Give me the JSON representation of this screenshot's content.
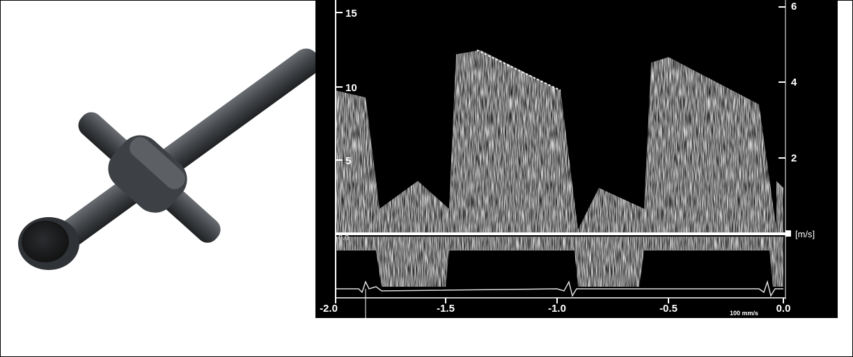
{
  "left_axis": {
    "labels": [
      "15",
      "10",
      "5"
    ]
  },
  "right_axis": {
    "labels": [
      "6",
      "4",
      "2",
      "[m/s]"
    ]
  },
  "x_axis": {
    "labels": [
      "-2.0",
      "-1.5",
      "-1.0",
      "-0.5",
      "0.0"
    ]
  },
  "speed_note": "100 mm/s",
  "baseline_label": "0.0"
}
